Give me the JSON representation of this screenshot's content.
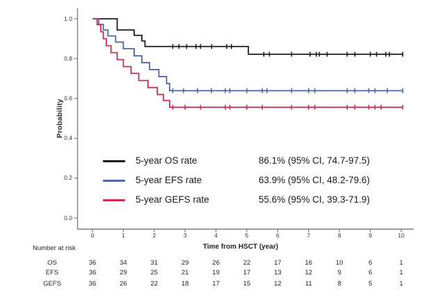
{
  "figure": {
    "background": "#ffffff"
  },
  "chart_data": {
    "type": "line",
    "subtype": "kaplan-meier-step-curves",
    "title": "",
    "xlabel": "Time from HSCT (year)",
    "ylabel": "Probability",
    "xlim": [
      0,
      10.2
    ],
    "ylim": [
      0,
      1.05
    ],
    "grid": false,
    "axis_color": "#7d7d7d",
    "text_color": "#262626",
    "x_ticks": [
      0,
      1,
      2,
      3,
      4,
      5,
      6,
      7,
      8,
      9,
      10
    ],
    "y_ticks": [
      {
        "value": 0.0,
        "label": "0.0"
      },
      {
        "value": 0.2,
        "label": "0.2"
      },
      {
        "value": 0.4,
        "label": "0.4"
      },
      {
        "value": 0.6,
        "label": "0.6"
      },
      {
        "value": 0.8,
        "label": "0.8"
      },
      {
        "value": 1.0,
        "label": "1.0"
      }
    ],
    "series": [
      {
        "name": "OS",
        "color": "#1c1c1c",
        "points": [
          [
            0,
            1.0
          ],
          [
            0.8,
            0.944
          ],
          [
            1.35,
            0.917
          ],
          [
            1.6,
            0.889
          ],
          [
            1.7,
            0.861
          ],
          [
            5.05,
            0.822
          ]
        ],
        "end_t": 10.05,
        "censor_times": [
          2.6,
          2.8,
          3.05,
          3.35,
          3.5,
          3.86,
          4.35,
          4.5,
          5.55,
          5.73,
          6.45,
          7.05,
          7.25,
          7.35,
          7.6,
          8.25,
          8.5,
          9.0,
          9.2,
          9.5,
          9.62,
          10.05
        ]
      },
      {
        "name": "EFS",
        "color": "#4c69a5",
        "points": [
          [
            0,
            1.0
          ],
          [
            0.2,
            0.972
          ],
          [
            0.35,
            0.944
          ],
          [
            0.5,
            0.914
          ],
          [
            0.75,
            0.883
          ],
          [
            1.0,
            0.85
          ],
          [
            1.35,
            0.814
          ],
          [
            1.6,
            0.78
          ],
          [
            1.85,
            0.745
          ],
          [
            2.15,
            0.71
          ],
          [
            2.4,
            0.675
          ],
          [
            2.5,
            0.639
          ]
        ],
        "end_t": 10.05,
        "censor_times": [
          2.6,
          2.95,
          3.4,
          3.85,
          4.3,
          4.45,
          5.0,
          5.5,
          5.65,
          6.45,
          7.0,
          7.2,
          8.25,
          8.5,
          8.95,
          9.15,
          9.55,
          10.05
        ]
      },
      {
        "name": "GEFS",
        "color": "#cf2b50",
        "points": [
          [
            0,
            1.0
          ],
          [
            0.15,
            0.97
          ],
          [
            0.27,
            0.935
          ],
          [
            0.35,
            0.9
          ],
          [
            0.45,
            0.865
          ],
          [
            0.6,
            0.83
          ],
          [
            0.8,
            0.795
          ],
          [
            1.0,
            0.76
          ],
          [
            1.25,
            0.726
          ],
          [
            1.5,
            0.69
          ],
          [
            1.8,
            0.655
          ],
          [
            2.1,
            0.62
          ],
          [
            2.3,
            0.59
          ],
          [
            2.5,
            0.556
          ]
        ],
        "end_t": 10.05,
        "censor_times": [
          2.6,
          3.0,
          3.5,
          4.3,
          4.45,
          5.0,
          5.5,
          6.45,
          7.0,
          7.2,
          8.25,
          8.5,
          8.95,
          9.15,
          9.35,
          10.05
        ]
      }
    ],
    "legend": {
      "position": "inside-lower-left",
      "items": [
        {
          "label": "5-year OS rate",
          "value": "86.1% (95% CI, 74.7-97.5)",
          "color": "#1c1c1c"
        },
        {
          "label": "5-year EFS rate",
          "value": "63.9% (95% CI, 48.2-79.6)",
          "color": "#4c69a5"
        },
        {
          "label": "5-year GEFS rate",
          "value": "55.6% (95% CI, 39.3-71.9)",
          "color": "#cf2b50"
        }
      ]
    },
    "risk_table": {
      "title": "Number at risk",
      "time_points": [
        0,
        1,
        2,
        3,
        4,
        5,
        6,
        7,
        8,
        9,
        10
      ],
      "rows": [
        {
          "label": "OS",
          "values": [
            36,
            34,
            31,
            29,
            26,
            22,
            17,
            16,
            10,
            6,
            1
          ]
        },
        {
          "label": "EFS",
          "values": [
            36,
            29,
            25,
            21,
            19,
            17,
            13,
            12,
            9,
            6,
            1
          ]
        },
        {
          "label": "GEFS",
          "values": [
            36,
            26,
            22,
            18,
            17,
            15,
            12,
            11,
            8,
            5,
            1
          ]
        }
      ]
    }
  }
}
